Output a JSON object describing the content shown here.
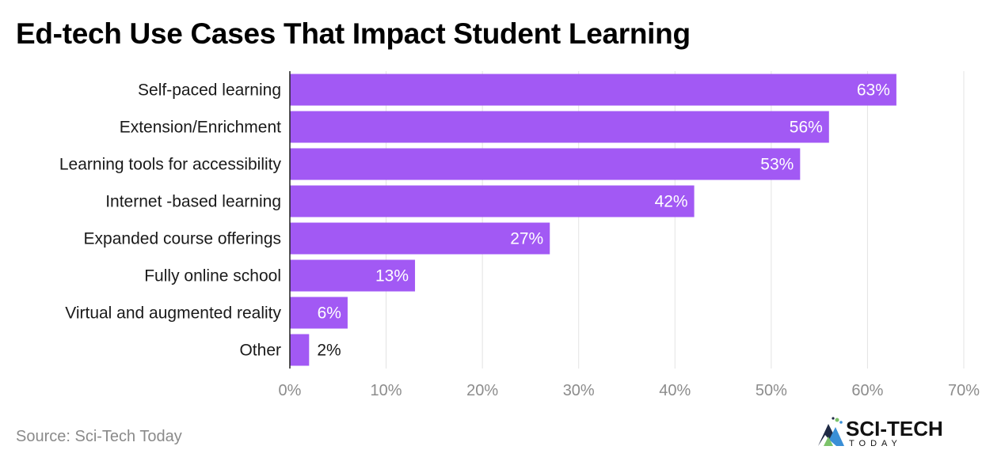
{
  "chart_data": {
    "type": "bar",
    "orientation": "horizontal",
    "title": "Ed-tech Use Cases That Impact Student Learning",
    "categories": [
      "Self-paced learning",
      "Extension/Enrichment",
      "Learning tools for accessibility",
      "Internet -based learning",
      "Expanded course offerings",
      "Fully online school",
      "Virtual and augmented reality",
      "Other"
    ],
    "values": [
      63,
      56,
      53,
      42,
      27,
      13,
      6,
      2
    ],
    "value_labels": [
      "63%",
      "56%",
      "53%",
      "42%",
      "27%",
      "13%",
      "6%",
      "2%"
    ],
    "x_ticks": [
      0,
      10,
      20,
      30,
      40,
      50,
      60,
      70
    ],
    "x_tick_labels": [
      "0%",
      "10%",
      "20%",
      "30%",
      "40%",
      "50%",
      "60%",
      "70%"
    ],
    "xlim": [
      0,
      70
    ],
    "grid": true,
    "bar_color": "#a259f4"
  },
  "source": "Source: Sci-Tech Today",
  "logo": {
    "name": "SCI-TECH",
    "subtitle": "TODAY"
  }
}
